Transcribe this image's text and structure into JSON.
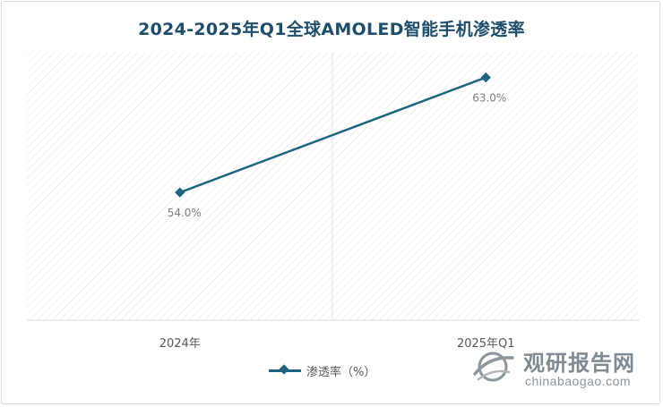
{
  "chart_data": {
    "type": "line",
    "title": "2024-2025年Q1全球AMOLED智能手机渗透率",
    "categories": [
      "2024年",
      "2025年Q1"
    ],
    "series": [
      {
        "name": "渗透率（%）",
        "values": [
          54.0,
          63.0
        ],
        "labels": [
          "54.0%",
          "63.0%"
        ],
        "color": "#1e6480"
      }
    ],
    "ylim": [
      44.0,
      65.0
    ],
    "grid": false,
    "legend": "bottom"
  },
  "watermark": {
    "brand_cn": "观研报告网",
    "brand_en": "chinabaogao.com"
  },
  "colors": {
    "title": "#1f4e6b",
    "line": "#1e6480",
    "label": "#7f7f7f",
    "axis_text": "#595959"
  }
}
